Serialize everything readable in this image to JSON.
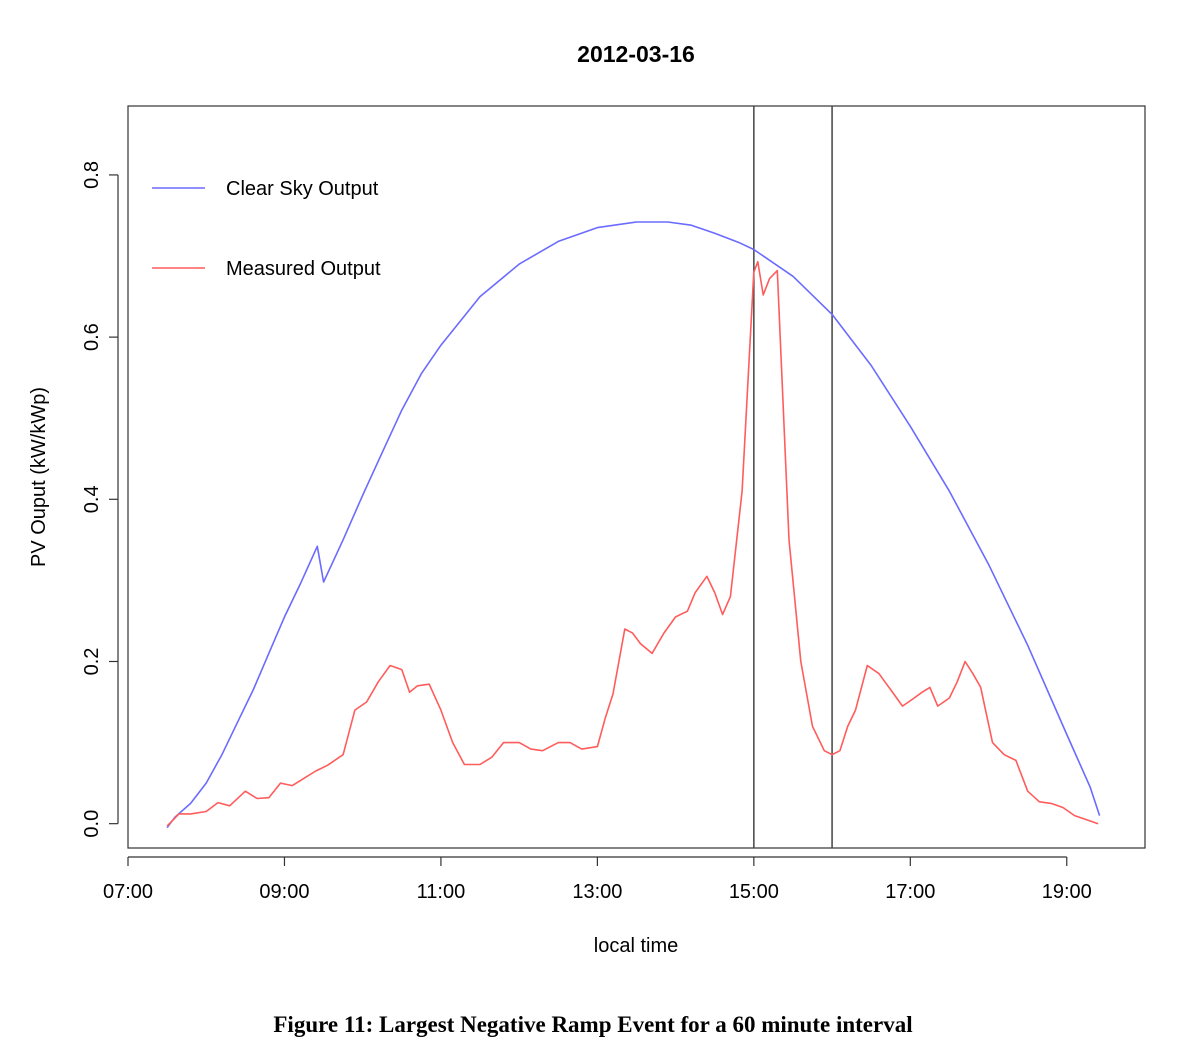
{
  "caption": "Figure 11: Largest Negative Ramp Event for a 60 minute interval",
  "chart_data": {
    "type": "line",
    "title": "2012-03-16",
    "xlabel": "local time",
    "ylabel": "PV Ouput (kW/kWp)",
    "x_tick_labels": [
      "07:00",
      "09:00",
      "11:00",
      "13:00",
      "15:00",
      "17:00",
      "19:00"
    ],
    "y_tick_labels": [
      "0.0",
      "0.2",
      "0.4",
      "0.6",
      "0.8"
    ],
    "xlim_hours": [
      7.0,
      20.0
    ],
    "ylim": [
      -0.03,
      0.885
    ],
    "grid": false,
    "legend_position": "top-left",
    "vertical_lines_hours": [
      15.0,
      16.0
    ],
    "series": [
      {
        "name": "Clear Sky Output",
        "color": "#6b6bff",
        "x_hours": [
          7.5,
          7.6,
          7.8,
          8.0,
          8.2,
          8.4,
          8.6,
          8.8,
          9.0,
          9.2,
          9.42,
          9.5,
          9.75,
          10.0,
          10.25,
          10.5,
          10.75,
          11.0,
          11.5,
          12.0,
          12.5,
          13.0,
          13.5,
          13.9,
          14.2,
          14.5,
          14.8,
          15.0,
          15.5,
          16.0,
          16.5,
          17.0,
          17.5,
          18.0,
          18.5,
          19.0,
          19.3,
          19.42
        ],
        "values": [
          -0.005,
          0.008,
          0.025,
          0.05,
          0.085,
          0.125,
          0.165,
          0.21,
          0.255,
          0.295,
          0.342,
          0.298,
          0.35,
          0.405,
          0.458,
          0.51,
          0.555,
          0.59,
          0.65,
          0.69,
          0.718,
          0.735,
          0.742,
          0.742,
          0.738,
          0.728,
          0.717,
          0.708,
          0.675,
          0.628,
          0.565,
          0.49,
          0.41,
          0.32,
          0.22,
          0.11,
          0.045,
          0.01
        ]
      },
      {
        "name": "Measured Output",
        "color": "#ff5c5c",
        "x_hours": [
          7.5,
          7.65,
          7.8,
          8.0,
          8.15,
          8.3,
          8.5,
          8.65,
          8.8,
          8.95,
          9.1,
          9.25,
          9.4,
          9.55,
          9.75,
          9.9,
          10.05,
          10.2,
          10.35,
          10.5,
          10.6,
          10.7,
          10.85,
          11.0,
          11.15,
          11.3,
          11.5,
          11.65,
          11.8,
          12.0,
          12.15,
          12.3,
          12.5,
          12.65,
          12.8,
          13.0,
          13.1,
          13.2,
          13.35,
          13.45,
          13.55,
          13.7,
          13.85,
          14.0,
          14.15,
          14.25,
          14.4,
          14.5,
          14.6,
          14.7,
          14.85,
          15.0,
          15.05,
          15.12,
          15.2,
          15.3,
          15.45,
          15.6,
          15.75,
          15.9,
          16.0,
          16.1,
          16.2,
          16.3,
          16.45,
          16.6,
          16.75,
          16.9,
          17.05,
          17.15,
          17.25,
          17.35,
          17.5,
          17.6,
          17.7,
          17.8,
          17.9,
          18.05,
          18.2,
          18.35,
          18.5,
          18.65,
          18.8,
          18.95,
          19.1,
          19.25,
          19.4
        ],
        "values": [
          -0.003,
          0.012,
          0.012,
          0.015,
          0.026,
          0.022,
          0.04,
          0.031,
          0.032,
          0.05,
          0.047,
          0.056,
          0.065,
          0.072,
          0.085,
          0.14,
          0.15,
          0.175,
          0.195,
          0.19,
          0.162,
          0.17,
          0.172,
          0.14,
          0.1,
          0.073,
          0.073,
          0.082,
          0.1,
          0.1,
          0.092,
          0.09,
          0.1,
          0.1,
          0.092,
          0.095,
          0.13,
          0.16,
          0.24,
          0.235,
          0.222,
          0.21,
          0.235,
          0.255,
          0.262,
          0.285,
          0.305,
          0.285,
          0.258,
          0.28,
          0.41,
          0.68,
          0.693,
          0.652,
          0.672,
          0.682,
          0.35,
          0.2,
          0.12,
          0.09,
          0.085,
          0.09,
          0.12,
          0.14,
          0.195,
          0.185,
          0.165,
          0.145,
          0.155,
          0.162,
          0.168,
          0.145,
          0.155,
          0.175,
          0.2,
          0.185,
          0.168,
          0.1,
          0.085,
          0.078,
          0.04,
          0.027,
          0.025,
          0.02,
          0.01,
          0.005,
          0.0
        ]
      }
    ]
  }
}
